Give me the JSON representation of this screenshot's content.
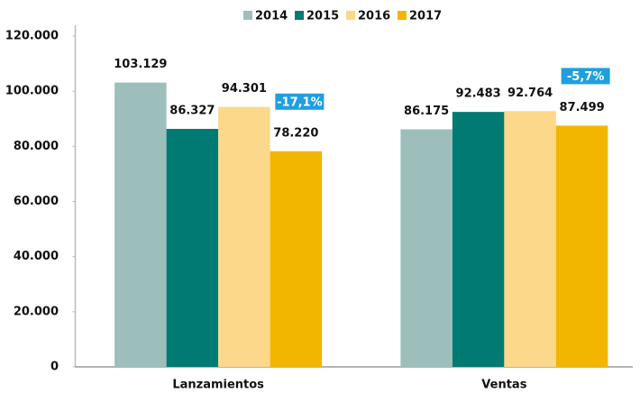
{
  "chart_data": {
    "type": "bar",
    "categories": [
      "Lanzamientos",
      "Ventas"
    ],
    "series": [
      {
        "name": "2014",
        "color": "#9dbfbc",
        "values": [
          103129,
          86175
        ],
        "value_labels": [
          "103.129",
          "86.175"
        ]
      },
      {
        "name": "2015",
        "color": "#007a73",
        "values": [
          86327,
          92483
        ],
        "value_labels": [
          "86.327",
          "92.483"
        ]
      },
      {
        "name": "2016",
        "color": "#fcd88a",
        "values": [
          94301,
          92764
        ],
        "value_labels": [
          "94.301",
          "92.764"
        ]
      },
      {
        "name": "2017",
        "color": "#f2b500",
        "values": [
          78220,
          87499
        ],
        "value_labels": [
          "78.220",
          "87.499"
        ]
      }
    ],
    "annotations": [
      "-17,1%",
      "-5,7%"
    ],
    "annotation_color": "#1f9fe0",
    "ylim": [
      0,
      120000
    ],
    "yticks": [
      0,
      {
        "value": 20000,
        "label": "20.000"
      },
      {
        "value": 40000,
        "label": "40.000"
      },
      {
        "value": 60000,
        "label": "60.000"
      },
      {
        "value": 80000,
        "label": "80.000"
      },
      {
        "value": 100000,
        "label": "100.000"
      },
      {
        "value": 120000,
        "label": "120.000"
      }
    ],
    "grid": false,
    "legend": "top"
  }
}
